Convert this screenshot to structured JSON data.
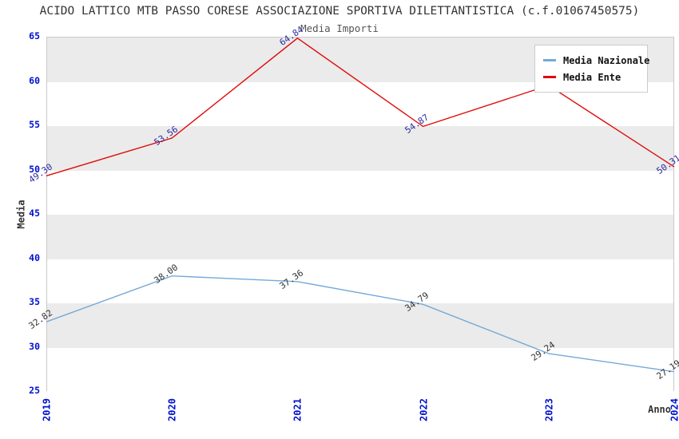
{
  "page": {
    "background": "#ffffff"
  },
  "chart_data": {
    "type": "line",
    "title": "ACIDO LATTICO MTB PASSO CORESE ASSOCIAZIONE SPORTIVA DILETTANTISTICA (c.f.01067450575)",
    "subtitle": "Media Importi",
    "xlabel": "Anno",
    "ylabel": "Media",
    "categories": [
      "2019",
      "2020",
      "2021",
      "2022",
      "2023",
      "2024"
    ],
    "ylim": [
      25,
      65
    ],
    "yticks": [
      25,
      30,
      35,
      40,
      45,
      50,
      55,
      60,
      65
    ],
    "grid": "alternating-horizontal-bands",
    "legend_position": "top-right",
    "series": [
      {
        "name": "Media Nazionale",
        "color": "#74a9d8",
        "label_color": "#333333",
        "values": [
          32.82,
          38.0,
          37.36,
          34.79,
          29.24,
          27.19
        ],
        "point_labels": [
          "32.82",
          "38.00",
          "37.36",
          "34.79",
          "29.24",
          "27.19"
        ]
      },
      {
        "name": "Media Ente",
        "color": "#e00b0b",
        "label_color": "#2d2da0",
        "values": [
          49.3,
          53.56,
          64.84,
          54.87,
          59.5,
          50.31
        ],
        "point_labels": [
          "49.30",
          "53.56",
          "64.84",
          "54.87",
          "",
          "50.31"
        ]
      }
    ],
    "colors": {
      "tick_label": "#0011cc",
      "band": "#ebebeb",
      "plot_border": "#c9c9c9",
      "title": "#333333",
      "subtitle": "#555555",
      "axis_label": "#333333",
      "legend_border": "#cccccc",
      "legend_bg": "#ffffff",
      "legend_text": "#111111"
    }
  }
}
